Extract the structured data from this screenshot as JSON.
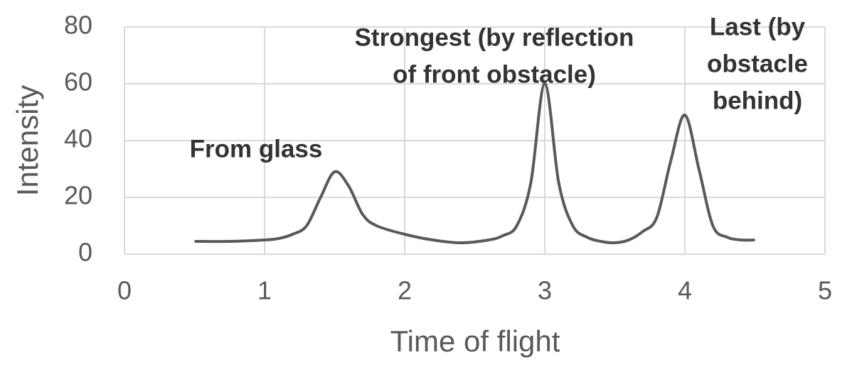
{
  "chart_data": {
    "type": "line",
    "x_label": "Time of flight",
    "y_label": "Intensity",
    "x": [
      0.5,
      0.75,
      1.0,
      1.1,
      1.2,
      1.3,
      1.4,
      1.5,
      1.6,
      1.7,
      1.8,
      2.0,
      2.2,
      2.4,
      2.6,
      2.7,
      2.8,
      2.9,
      3.0,
      3.1,
      3.2,
      3.3,
      3.4,
      3.5,
      3.6,
      3.7,
      3.8,
      3.9,
      4.0,
      4.1,
      4.2,
      4.3,
      4.4,
      4.5
    ],
    "values": [
      4.5,
      4.5,
      5,
      5.5,
      7,
      10,
      20,
      29,
      24,
      14,
      10,
      7,
      5,
      4,
      5,
      6.5,
      10,
      25,
      60,
      25,
      10,
      6,
      4.5,
      4,
      5,
      8,
      13,
      33,
      49,
      30,
      10,
      6,
      5,
      5
    ],
    "color": "#595959",
    "xlim": [
      0,
      5
    ],
    "ylim": [
      0,
      80
    ],
    "xticks": [
      0,
      1,
      2,
      3,
      4,
      5
    ],
    "yticks": [
      0,
      20,
      40,
      60,
      80
    ],
    "grid": true,
    "annotations": [
      {
        "lines": [
          "From glass"
        ]
      },
      {
        "lines": [
          "Strongest (by reflection",
          "of front obstacle)"
        ]
      },
      {
        "lines": [
          "Last (by",
          "obstacle",
          "behind)"
        ]
      }
    ]
  }
}
